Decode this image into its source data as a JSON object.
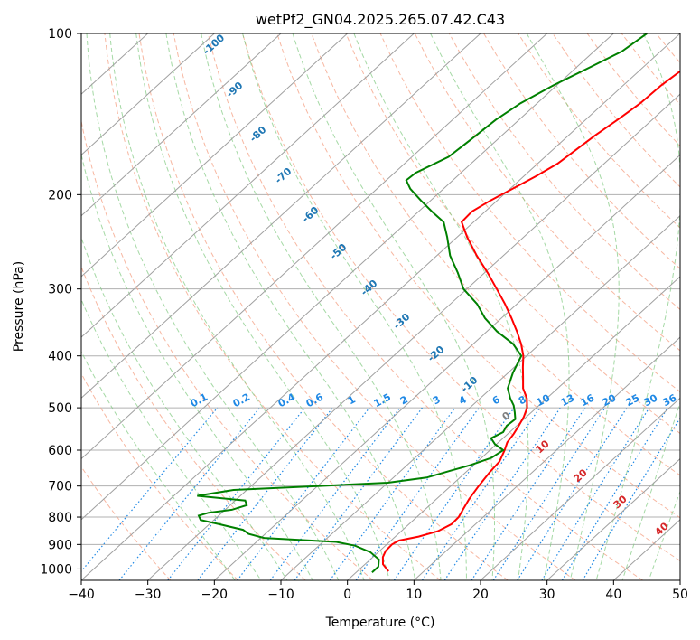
{
  "chart_data": {
    "type": "line",
    "subtype": "skew-T log-p diagram",
    "title": "wetPf2_GN04.2025.265.07.42.C43",
    "xlabel": "Temperature (°C)",
    "ylabel": "Pressure (hPa)",
    "xlim": [
      -40,
      50
    ],
    "ylim": [
      1050,
      100
    ],
    "y_scale": "log",
    "x_ticks": [
      -40,
      -30,
      -20,
      -10,
      0,
      10,
      20,
      30,
      40,
      50
    ],
    "y_ticks": [
      1000,
      900,
      800,
      700,
      600,
      500,
      400,
      300,
      200,
      100
    ],
    "grid": true,
    "colors": {
      "temperature": "#ff0000",
      "dewpoint": "#008000",
      "isotherm": "#a0a0a0",
      "dry_adiabat": "#f5a58a",
      "moist_adiabat": "#7fc97f",
      "mixing_ratio": "#1e88e5",
      "grid": "#b0b0b0",
      "label_blue": "#1f77b4",
      "label_red": "#d62728",
      "label_gray": "#808080"
    },
    "series": [
      {
        "name": "Temperature",
        "color": "#ff0000",
        "points": [
          {
            "p": 1010,
            "t": 4.7
          },
          {
            "p": 980,
            "t": 2.7
          },
          {
            "p": 950,
            "t": 1.5
          },
          {
            "p": 925,
            "t": 0.9
          },
          {
            "p": 900,
            "t": 0.8
          },
          {
            "p": 885,
            "t": 1.2
          },
          {
            "p": 870,
            "t": 3.5
          },
          {
            "p": 850,
            "t": 5.5
          },
          {
            "p": 825,
            "t": 6.4
          },
          {
            "p": 800,
            "t": 6.3
          },
          {
            "p": 770,
            "t": 5.6
          },
          {
            "p": 740,
            "t": 4.9
          },
          {
            "p": 700,
            "t": 4.2
          },
          {
            "p": 660,
            "t": 3.6
          },
          {
            "p": 630,
            "t": 3.3
          },
          {
            "p": 600,
            "t": 2.2
          },
          {
            "p": 580,
            "t": 1.3
          },
          {
            "p": 560,
            "t": 0.9
          },
          {
            "p": 540,
            "t": 0.3
          },
          {
            "p": 520,
            "t": -0.4
          },
          {
            "p": 500,
            "t": -1.4
          },
          {
            "p": 480,
            "t": -3.0
          },
          {
            "p": 460,
            "t": -5.2
          },
          {
            "p": 440,
            "t": -6.9
          },
          {
            "p": 420,
            "t": -8.7
          },
          {
            "p": 400,
            "t": -10.5
          },
          {
            "p": 380,
            "t": -12.8
          },
          {
            "p": 360,
            "t": -15.5
          },
          {
            "p": 340,
            "t": -18.5
          },
          {
            "p": 320,
            "t": -21.8
          },
          {
            "p": 300,
            "t": -25.5
          },
          {
            "p": 280,
            "t": -29.5
          },
          {
            "p": 260,
            "t": -34.0
          },
          {
            "p": 240,
            "t": -38.5
          },
          {
            "p": 225,
            "t": -41.8
          },
          {
            "p": 215,
            "t": -42.0
          },
          {
            "p": 205,
            "t": -41.0
          },
          {
            "p": 195,
            "t": -39.6
          },
          {
            "p": 185,
            "t": -38.2
          },
          {
            "p": 175,
            "t": -37.0
          },
          {
            "p": 165,
            "t": -36.5
          },
          {
            "p": 155,
            "t": -36.0
          },
          {
            "p": 145,
            "t": -35.2
          },
          {
            "p": 135,
            "t": -34.5
          },
          {
            "p": 125,
            "t": -34.3
          },
          {
            "p": 118,
            "t": -33.8
          },
          {
            "p": 110,
            "t": -33.0
          },
          {
            "p": 104,
            "t": -32.2
          },
          {
            "p": 100,
            "t": -31.6
          }
        ]
      },
      {
        "name": "Dewpoint",
        "color": "#008000",
        "points": [
          {
            "p": 1015,
            "t": 2.4
          },
          {
            "p": 990,
            "t": 2.4
          },
          {
            "p": 960,
            "t": 1.3
          },
          {
            "p": 930,
            "t": -1.2
          },
          {
            "p": 905,
            "t": -4.5
          },
          {
            "p": 890,
            "t": -8.0
          },
          {
            "p": 875,
            "t": -19.5
          },
          {
            "p": 860,
            "t": -22.5
          },
          {
            "p": 845,
            "t": -24.0
          },
          {
            "p": 825,
            "t": -28.5
          },
          {
            "p": 810,
            "t": -32.0
          },
          {
            "p": 795,
            "t": -33.0
          },
          {
            "p": 785,
            "t": -32.0
          },
          {
            "p": 775,
            "t": -29.0
          },
          {
            "p": 760,
            "t": -27.5
          },
          {
            "p": 745,
            "t": -28.5
          },
          {
            "p": 730,
            "t": -36.5
          },
          {
            "p": 712,
            "t": -32.0
          },
          {
            "p": 700,
            "t": -20.0
          },
          {
            "p": 690,
            "t": -10.0
          },
          {
            "p": 675,
            "t": -5.0
          },
          {
            "p": 655,
            "t": -2.5
          },
          {
            "p": 640,
            "t": -0.5
          },
          {
            "p": 620,
            "t": 1.5
          },
          {
            "p": 600,
            "t": 2.0
          },
          {
            "p": 585,
            "t": -0.2
          },
          {
            "p": 570,
            "t": -1.8
          },
          {
            "p": 555,
            "t": -1.0
          },
          {
            "p": 540,
            "t": -1.5
          },
          {
            "p": 525,
            "t": -1.3
          },
          {
            "p": 510,
            "t": -2.5
          },
          {
            "p": 495,
            "t": -3.8
          },
          {
            "p": 480,
            "t": -5.5
          },
          {
            "p": 460,
            "t": -7.5
          },
          {
            "p": 430,
            "t": -9.3
          },
          {
            "p": 400,
            "t": -10.8
          },
          {
            "p": 380,
            "t": -14.0
          },
          {
            "p": 360,
            "t": -18.5
          },
          {
            "p": 340,
            "t": -22.5
          },
          {
            "p": 320,
            "t": -26.0
          },
          {
            "p": 300,
            "t": -30.5
          },
          {
            "p": 280,
            "t": -34.0
          },
          {
            "p": 260,
            "t": -38.0
          },
          {
            "p": 240,
            "t": -41.5
          },
          {
            "p": 225,
            "t": -44.5
          },
          {
            "p": 215,
            "t": -48.0
          },
          {
            "p": 205,
            "t": -51.5
          },
          {
            "p": 195,
            "t": -55.0
          },
          {
            "p": 188,
            "t": -57.0
          },
          {
            "p": 182,
            "t": -56.8
          },
          {
            "p": 170,
            "t": -54.5
          },
          {
            "p": 158,
            "t": -54.0
          },
          {
            "p": 145,
            "t": -53.5
          },
          {
            "p": 135,
            "t": -52.5
          },
          {
            "p": 125,
            "t": -50.5
          },
          {
            "p": 115,
            "t": -47.8
          },
          {
            "p": 108,
            "t": -45.8
          },
          {
            "p": 100,
            "t": -45.0
          }
        ]
      }
    ],
    "isotherm_labels": [
      {
        "text": "-100",
        "t": -100
      },
      {
        "text": "-90",
        "t": -90
      },
      {
        "text": "-80",
        "t": -80
      },
      {
        "text": "-70",
        "t": -70
      },
      {
        "text": "-60",
        "t": -60
      },
      {
        "text": "-50",
        "t": -50
      },
      {
        "text": "-40",
        "t": -40
      },
      {
        "text": "-30",
        "t": -30
      },
      {
        "text": "-20",
        "t": -20
      },
      {
        "text": "-10",
        "t": -10
      },
      {
        "text": "0",
        "t": 0
      },
      {
        "text": "10",
        "t": 10
      },
      {
        "text": "20",
        "t": 20
      },
      {
        "text": "30",
        "t": 30
      },
      {
        "text": "40",
        "t": 40
      }
    ],
    "mixing_ratio_labels": [
      "0.1",
      "0.2",
      "0.4",
      "0.6",
      "1",
      "1.5",
      "2",
      "3",
      "4",
      "6",
      "8",
      "10",
      "13",
      "16",
      "20",
      "25",
      "30",
      "36"
    ],
    "mixing_ratio_temps_at_500": [
      -23.5,
      -17.2,
      -9.3,
      -4.9,
      -0.2,
      4.5,
      8.2,
      13.5,
      17.6,
      24.0,
      28.5,
      32.3,
      37.0,
      41.0,
      45.2,
      49.0,
      53.0,
      57.0
    ]
  }
}
